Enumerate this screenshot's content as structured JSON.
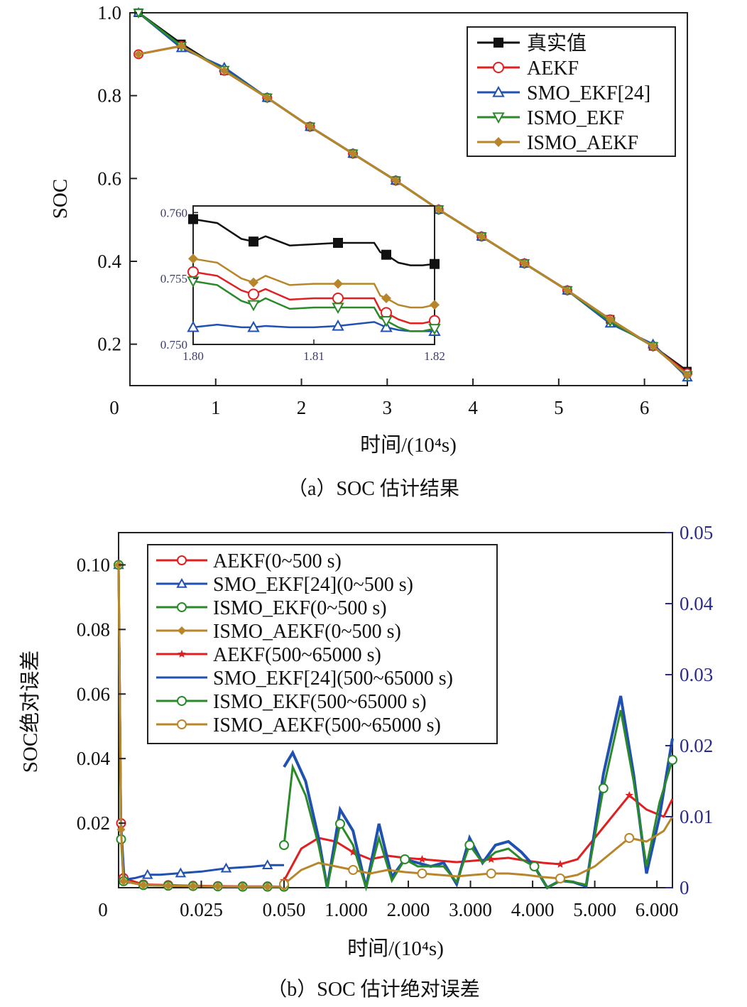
{
  "chart_data": [
    {
      "type": "line",
      "caption": "（a）SOC 估计结果",
      "xlabel": "时间/(10⁴s)",
      "ylabel": "SOC",
      "xlim": [
        0,
        6.5
      ],
      "ylim": [
        0.1,
        1.0
      ],
      "xticks": [
        "0",
        "1",
        "2",
        "3",
        "4",
        "5",
        "6"
      ],
      "yticks": [
        "0.2",
        "0.4",
        "0.6",
        "0.8",
        "1.0"
      ],
      "legend_position": "top-right",
      "series": [
        {
          "name": "真实值",
          "color": "#111111",
          "marker": "square",
          "x": [
            0.1,
            0.6,
            1.1,
            1.6,
            2.1,
            2.6,
            3.1,
            3.6,
            4.1,
            4.6,
            5.1,
            5.6,
            6.1,
            6.5
          ],
          "y": [
            1.0,
            0.925,
            0.86,
            0.795,
            0.725,
            0.66,
            0.595,
            0.525,
            0.46,
            0.395,
            0.33,
            0.26,
            0.195,
            0.135
          ]
        },
        {
          "name": "AEKF",
          "color": "#e02020",
          "marker": "circle",
          "x": [
            0.1,
            0.6,
            1.1,
            1.6,
            2.1,
            2.6,
            3.1,
            3.6,
            4.1,
            4.6,
            5.1,
            5.6,
            6.1,
            6.5
          ],
          "y": [
            0.9,
            0.92,
            0.86,
            0.795,
            0.725,
            0.66,
            0.595,
            0.525,
            0.46,
            0.395,
            0.33,
            0.26,
            0.195,
            0.13
          ]
        },
        {
          "name": "SMO_EKF[24]",
          "color": "#2050b0",
          "marker": "triangle-up",
          "x": [
            0.1,
            0.6,
            1.1,
            1.6,
            2.1,
            2.6,
            3.1,
            3.6,
            4.1,
            4.6,
            5.1,
            5.6,
            6.1,
            6.5
          ],
          "y": [
            1.0,
            0.915,
            0.868,
            0.795,
            0.725,
            0.66,
            0.595,
            0.525,
            0.46,
            0.395,
            0.33,
            0.25,
            0.2,
            0.12
          ]
        },
        {
          "name": "ISMO_EKF",
          "color": "#2a8a2a",
          "marker": "triangle-down",
          "x": [
            0.1,
            0.6,
            1.1,
            1.6,
            2.1,
            2.6,
            3.1,
            3.6,
            4.1,
            4.6,
            5.1,
            5.6,
            6.1,
            6.5
          ],
          "y": [
            1.0,
            0.92,
            0.862,
            0.795,
            0.725,
            0.66,
            0.595,
            0.525,
            0.46,
            0.395,
            0.33,
            0.255,
            0.195,
            0.125
          ]
        },
        {
          "name": "ISMO_AEKF",
          "color": "#b8862a",
          "marker": "diamond",
          "x": [
            0.1,
            0.6,
            1.1,
            1.6,
            2.1,
            2.6,
            3.1,
            3.6,
            4.1,
            4.6,
            5.1,
            5.6,
            6.1,
            6.5
          ],
          "y": [
            0.9,
            0.92,
            0.86,
            0.795,
            0.725,
            0.66,
            0.595,
            0.525,
            0.46,
            0.395,
            0.33,
            0.26,
            0.195,
            0.125
          ]
        }
      ],
      "inset": {
        "xlim": [
          1.8,
          1.82
        ],
        "ylim": [
          0.75,
          0.7605
        ],
        "xticks": [
          "1.80",
          "1.81",
          "1.82"
        ],
        "yticks": [
          "0.750",
          "0.755",
          "0.760"
        ],
        "series": [
          {
            "name": "真实值",
            "color": "#111111",
            "marker": "square",
            "x": [
              1.8,
              1.802,
              1.804,
              1.805,
              1.806,
              1.808,
              1.81,
              1.812,
              1.814,
              1.815,
              1.8155,
              1.816,
              1.817,
              1.818,
              1.819,
              1.82
            ],
            "y": [
              0.7595,
              0.7592,
              0.758,
              0.7578,
              0.7582,
              0.7575,
              0.7576,
              0.7577,
              0.7577,
              0.7577,
              0.757,
              0.7568,
              0.7562,
              0.756,
              0.756,
              0.7561
            ]
          },
          {
            "name": "AEKF",
            "color": "#e02020",
            "marker": "circle",
            "x": [
              1.8,
              1.802,
              1.804,
              1.805,
              1.806,
              1.808,
              1.81,
              1.812,
              1.814,
              1.815,
              1.8155,
              1.816,
              1.817,
              1.818,
              1.819,
              1.82
            ],
            "y": [
              0.7555,
              0.7552,
              0.7541,
              0.7538,
              0.7542,
              0.7534,
              0.7535,
              0.7535,
              0.7535,
              0.7535,
              0.7526,
              0.7524,
              0.7519,
              0.7516,
              0.7516,
              0.7518
            ]
          },
          {
            "name": "SMO_EKF[24]",
            "color": "#2050b0",
            "marker": "triangle-up",
            "x": [
              1.8,
              1.802,
              1.804,
              1.805,
              1.806,
              1.808,
              1.81,
              1.812,
              1.814,
              1.815,
              1.8155,
              1.816,
              1.817,
              1.818,
              1.819,
              1.82
            ],
            "y": [
              0.7513,
              0.7515,
              0.7513,
              0.7513,
              0.7514,
              0.7513,
              0.7513,
              0.7514,
              0.7516,
              0.7517,
              0.7515,
              0.7513,
              0.7511,
              0.751,
              0.751,
              0.751
            ]
          },
          {
            "name": "ISMO_EKF",
            "color": "#2a8a2a",
            "marker": "triangle-down",
            "x": [
              1.8,
              1.802,
              1.804,
              1.805,
              1.806,
              1.808,
              1.81,
              1.812,
              1.814,
              1.815,
              1.8155,
              1.816,
              1.817,
              1.818,
              1.819,
              1.82
            ],
            "y": [
              0.7548,
              0.7545,
              0.7533,
              0.753,
              0.7535,
              0.7527,
              0.7528,
              0.7528,
              0.7528,
              0.7528,
              0.752,
              0.7518,
              0.7513,
              0.751,
              0.751,
              0.7512
            ]
          },
          {
            "name": "ISMO_AEKF",
            "color": "#b8862a",
            "marker": "diamond",
            "x": [
              1.8,
              1.802,
              1.804,
              1.805,
              1.806,
              1.808,
              1.81,
              1.812,
              1.814,
              1.815,
              1.8155,
              1.816,
              1.817,
              1.818,
              1.819,
              1.82
            ],
            "y": [
              0.7565,
              0.7562,
              0.755,
              0.7547,
              0.7552,
              0.7545,
              0.7546,
              0.7546,
              0.7546,
              0.7546,
              0.7537,
              0.7535,
              0.753,
              0.7528,
              0.7528,
              0.753
            ]
          }
        ]
      }
    },
    {
      "type": "line",
      "caption": "（b）SOC 估计绝对误差",
      "xlabel": "时间/(10⁴s)",
      "ylabel": "SOC绝对误差",
      "xlim": [
        0,
        6.5
      ],
      "ylim_left": [
        0,
        0.11
      ],
      "ylim_right": [
        0,
        0.05
      ],
      "xticks": [
        "0",
        "0.025",
        "0.050",
        "1.000",
        "2.000",
        "3.000",
        "4.000",
        "5.000",
        "6.000"
      ],
      "yticks_left": [
        "0.02",
        "0.04",
        "0.06",
        "0.08",
        "0.10"
      ],
      "yticks_right": [
        "0",
        "0.01",
        "0.02",
        "0.03",
        "0.04",
        "0.05"
      ],
      "legend_position": "top-left",
      "series": [
        {
          "name": "AEKF(0~500 s)",
          "color": "#e02020",
          "marker": "circle",
          "axis": "left",
          "x": [
            0,
            0.03,
            0.06,
            0.3,
            0.6,
            0.9,
            1.2,
            1.5,
            1.8,
            2.0
          ],
          "y": [
            0.1,
            0.02,
            0.003,
            0.001,
            0.0008,
            0.0006,
            0.0005,
            0.0004,
            0.0004,
            0.0003
          ]
        },
        {
          "name": "SMO_EKF[24](0~500 s)",
          "color": "#2050b0",
          "marker": "triangle-up",
          "axis": "left",
          "x": [
            0,
            0.03,
            0.07,
            0.2,
            0.35,
            0.5,
            0.75,
            1.0,
            1.3,
            1.6,
            1.8,
            2.0
          ],
          "y": [
            0.1,
            0.02,
            0.0025,
            0.003,
            0.004,
            0.004,
            0.0045,
            0.005,
            0.006,
            0.0065,
            0.007,
            0.007
          ]
        },
        {
          "name": "ISMO_EKF(0~500 s)",
          "color": "#2a8a2a",
          "marker": "circle",
          "axis": "left",
          "x": [
            0,
            0.03,
            0.06,
            0.3,
            0.6,
            0.9,
            1.2,
            1.5,
            1.8,
            2.0
          ],
          "y": [
            0.1,
            0.015,
            0.002,
            0.0008,
            0.0006,
            0.0005,
            0.0004,
            0.0003,
            0.0003,
            0.0003
          ]
        },
        {
          "name": "ISMO_AEKF(0~500 s)",
          "color": "#b8862a",
          "marker": "diamond",
          "axis": "left",
          "x": [
            0,
            0.03,
            0.06,
            0.3,
            0.6,
            0.9,
            1.2,
            1.5,
            1.8,
            2.0
          ],
          "y": [
            0.1,
            0.018,
            0.002,
            0.0008,
            0.0006,
            0.0005,
            0.0004,
            0.0003,
            0.0003,
            0.0003
          ]
        },
        {
          "name": "AEKF(500~65000 s)",
          "color": "#e02020",
          "marker": "star",
          "axis": "right",
          "x": [
            2.0,
            2.2,
            2.4,
            2.6,
            2.8,
            3.0,
            3.2,
            3.4,
            3.6,
            3.8,
            4.0,
            4.2,
            4.4,
            4.6,
            4.8,
            5.0,
            5.2,
            5.4,
            5.6,
            5.8,
            6.0,
            6.2,
            6.4,
            6.5
          ],
          "y": [
            0.001,
            0.0055,
            0.007,
            0.0065,
            0.005,
            0.004,
            0.0045,
            0.0042,
            0.004,
            0.0038,
            0.0036,
            0.0038,
            0.004,
            0.0042,
            0.0038,
            0.0035,
            0.0033,
            0.004,
            0.007,
            0.01,
            0.013,
            0.011,
            0.01,
            0.0125
          ]
        },
        {
          "name": "SMO_EKF[24](500~65000 s)",
          "color": "#2050b0",
          "marker": "none",
          "axis": "right",
          "x": [
            2.0,
            2.1,
            2.25,
            2.4,
            2.5,
            2.65,
            2.8,
            2.95,
            3.1,
            3.25,
            3.4,
            3.55,
            3.7,
            3.85,
            4.0,
            4.15,
            4.3,
            4.45,
            4.6,
            4.75,
            4.9,
            5.05,
            5.2,
            5.35,
            5.5,
            5.7,
            5.9,
            6.05,
            6.2,
            6.35,
            6.5
          ],
          "y": [
            0.017,
            0.019,
            0.015,
            0.007,
            0.0,
            0.011,
            0.008,
            0.0,
            0.009,
            0.0015,
            0.004,
            0.0035,
            0.003,
            0.0035,
            0.0005,
            0.007,
            0.0035,
            0.006,
            0.0065,
            0.005,
            0.003,
            0.0,
            0.001,
            0.0008,
            0.0002,
            0.016,
            0.027,
            0.016,
            0.002,
            0.01,
            0.021
          ]
        },
        {
          "name": "ISMO_EKF(500~65000 s)",
          "color": "#2a8a2a",
          "marker": "circle",
          "axis": "right",
          "x": [
            2.0,
            2.1,
            2.25,
            2.4,
            2.5,
            2.65,
            2.8,
            2.95,
            3.1,
            3.25,
            3.4,
            3.55,
            3.7,
            3.85,
            4.0,
            4.15,
            4.3,
            4.45,
            4.6,
            4.75,
            4.9,
            5.05,
            5.2,
            5.35,
            5.5,
            5.7,
            5.9,
            6.05,
            6.2,
            6.35,
            6.5
          ],
          "y": [
            0.006,
            0.017,
            0.013,
            0.006,
            0.0,
            0.009,
            0.006,
            0.0,
            0.007,
            0.001,
            0.004,
            0.003,
            0.003,
            0.003,
            0.0008,
            0.006,
            0.0035,
            0.005,
            0.0055,
            0.004,
            0.003,
            0.0,
            0.001,
            0.0008,
            0.0004,
            0.014,
            0.025,
            0.015,
            0.003,
            0.012,
            0.018
          ]
        },
        {
          "name": "ISMO_AEKF(500~65000 s)",
          "color": "#b8862a",
          "marker": "circle",
          "axis": "right",
          "x": [
            2.0,
            2.2,
            2.4,
            2.6,
            2.8,
            3.0,
            3.2,
            3.4,
            3.6,
            3.8,
            4.0,
            4.2,
            4.4,
            4.6,
            4.8,
            5.0,
            5.2,
            5.4,
            5.6,
            5.8,
            6.0,
            6.2,
            6.4,
            6.5
          ],
          "y": [
            0.0005,
            0.0025,
            0.0035,
            0.003,
            0.0025,
            0.002,
            0.0025,
            0.0022,
            0.002,
            0.0018,
            0.0016,
            0.0018,
            0.002,
            0.002,
            0.0018,
            0.0015,
            0.0013,
            0.0018,
            0.003,
            0.005,
            0.007,
            0.0065,
            0.008,
            0.01
          ]
        }
      ]
    }
  ]
}
